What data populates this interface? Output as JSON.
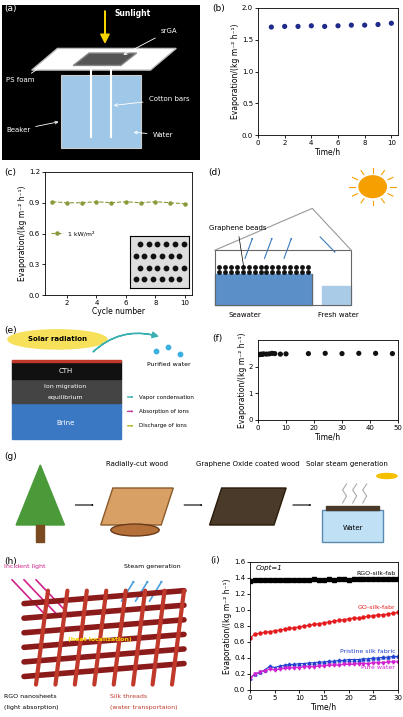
{
  "chart_data": [
    {
      "panel": "(b)",
      "type": "scatter",
      "marker": "o",
      "color": "#1f2a8a",
      "x": [
        1,
        2,
        3,
        4,
        5,
        6,
        7,
        8,
        9,
        10
      ],
      "values": [
        1.7,
        1.71,
        1.71,
        1.72,
        1.71,
        1.72,
        1.73,
        1.73,
        1.74,
        1.76
      ],
      "xlabel": "Time/h",
      "ylabel": "Evaporation/(kg m⁻² h⁻¹)",
      "xlim": [
        0,
        10.5
      ],
      "xticks": [
        0,
        2,
        4,
        6,
        8,
        10
      ],
      "ylim": [
        0,
        2.0
      ],
      "yticks": [
        {
          "value": 0,
          "label": "0.0"
        },
        {
          "value": 0.5,
          "label": "0.5"
        },
        {
          "value": 1.0,
          "label": "1.0"
        },
        {
          "value": 1.5,
          "label": "1.5"
        },
        {
          "value": 2.0,
          "label": "2.0"
        }
      ]
    },
    {
      "panel": "(c)",
      "type": "line",
      "legend": "center left",
      "x": [
        1,
        2,
        3,
        4,
        5,
        6,
        7,
        8,
        9,
        10
      ],
      "series": [
        {
          "name": "1 kW/m²",
          "color": "#8a9a3a",
          "marker": "o",
          "line_style": "dashed",
          "values": [
            0.91,
            0.9,
            0.9,
            0.91,
            0.9,
            0.91,
            0.9,
            0.91,
            0.9,
            0.89
          ]
        }
      ],
      "xlabel": "Cycle number",
      "ylabel": "Evaporation/(kg m⁻² h⁻¹)",
      "xlim": [
        0.5,
        10.5
      ],
      "xticks": [
        2,
        4,
        6,
        8,
        10
      ],
      "ylim": [
        0,
        1.2
      ],
      "yticks": [
        {
          "value": 0,
          "label": "0.0"
        },
        {
          "value": 0.3,
          "label": "0.3"
        },
        {
          "value": 0.6,
          "label": "0.6"
        },
        {
          "value": 0.9,
          "label": "0.9"
        },
        {
          "value": 1.2,
          "label": "1.2"
        }
      ]
    },
    {
      "panel": "(f)",
      "type": "scatter",
      "marker": "o",
      "color": "#111111",
      "x": [
        0.5,
        1,
        1.5,
        2,
        3,
        4,
        5,
        6,
        8,
        10,
        18,
        24,
        30,
        36,
        42,
        48
      ],
      "values": [
        2.45,
        2.47,
        2.46,
        2.48,
        2.47,
        2.48,
        2.5,
        2.49,
        2.47,
        2.48,
        2.49,
        2.5,
        2.49,
        2.5,
        2.5,
        2.49
      ],
      "xlabel": "Time/h",
      "ylabel": "Evaporation/(kg m⁻² h⁻¹)",
      "xlim": [
        0,
        50
      ],
      "xticks": [
        0,
        10,
        20,
        30,
        40,
        50
      ],
      "ylim": [
        0,
        3
      ],
      "yticks": [
        0,
        1,
        2
      ]
    },
    {
      "panel": "(i)",
      "type": "line",
      "annotation": "Copt=1",
      "x": [
        0,
        1,
        2,
        3,
        4,
        5,
        6,
        7,
        8,
        9,
        10,
        11,
        12,
        13,
        14,
        15,
        16,
        17,
        18,
        19,
        20,
        21,
        22,
        23,
        24,
        25,
        26,
        27,
        28,
        29,
        30
      ],
      "series": [
        {
          "name": "RGO-silk-fab",
          "color": "#000000",
          "marker": "s",
          "line_style": "solid",
          "values": [
            1.36,
            1.37,
            1.38,
            1.38,
            1.38,
            1.38,
            1.38,
            1.38,
            1.38,
            1.38,
            1.38,
            1.38,
            1.38,
            1.39,
            1.38,
            1.38,
            1.39,
            1.38,
            1.39,
            1.39,
            1.38,
            1.39,
            1.39,
            1.39,
            1.39,
            1.39,
            1.39,
            1.39,
            1.39,
            1.39,
            1.39
          ]
        },
        {
          "name": "GO-silk-fabr",
          "color": "#e41a1c",
          "marker": "o",
          "line_style": "solid",
          "values": [
            0.65,
            0.7,
            0.71,
            0.72,
            0.73,
            0.74,
            0.75,
            0.76,
            0.77,
            0.78,
            0.79,
            0.8,
            0.81,
            0.82,
            0.83,
            0.84,
            0.85,
            0.86,
            0.87,
            0.88,
            0.89,
            0.9,
            0.9,
            0.91,
            0.92,
            0.93,
            0.94,
            0.94,
            0.95,
            0.96,
            0.97
          ]
        },
        {
          "name": "Pristine silk fabric",
          "color": "#2040d0",
          "marker": "^",
          "line_style": "solid",
          "values": [
            0.15,
            0.2,
            0.22,
            0.25,
            0.3,
            0.28,
            0.3,
            0.31,
            0.32,
            0.32,
            0.33,
            0.33,
            0.34,
            0.34,
            0.35,
            0.35,
            0.36,
            0.36,
            0.37,
            0.37,
            0.38,
            0.38,
            0.38,
            0.39,
            0.39,
            0.4,
            0.4,
            0.41,
            0.41,
            0.42,
            0.42
          ]
        },
        {
          "name": "Pure water",
          "color": "#d020d0",
          "marker": "v",
          "line_style": "solid",
          "values": [
            0.15,
            0.2,
            0.22,
            0.24,
            0.26,
            0.25,
            0.26,
            0.27,
            0.27,
            0.28,
            0.28,
            0.29,
            0.29,
            0.29,
            0.3,
            0.3,
            0.31,
            0.31,
            0.31,
            0.32,
            0.32,
            0.32,
            0.33,
            0.33,
            0.33,
            0.34,
            0.34,
            0.34,
            0.35,
            0.35,
            0.35
          ]
        }
      ],
      "xlabel": "Time/h",
      "ylabel": "Evaporation/(kg m⁻² h⁻¹)",
      "xlim": [
        0,
        30
      ],
      "xticks": [
        0,
        5,
        10,
        15,
        20,
        25,
        30
      ],
      "ylim": [
        0,
        1.6
      ],
      "yticks": [
        {
          "value": 0,
          "label": "0.0"
        },
        {
          "value": 0.2,
          "label": "0.2"
        },
        {
          "value": 0.4,
          "label": "0.4"
        },
        {
          "value": 0.6,
          "label": "0.6"
        },
        {
          "value": 0.8,
          "label": "0.8"
        },
        {
          "value": 1.0,
          "label": "1.0"
        },
        {
          "value": 1.2,
          "label": "1.2"
        },
        {
          "value": 1.4,
          "label": "1.4"
        },
        {
          "value": 1.6,
          "label": "1.6"
        }
      ]
    }
  ],
  "diagrams": {
    "a": {
      "panel": "(a)",
      "labels": {
        "sun": "Sunlight",
        "top": "srGA",
        "foam": "PS foam",
        "cotton": "Cotton bars",
        "beaker": "Beaker",
        "water": "Water"
      }
    },
    "d": {
      "panel": "(d)",
      "labels": {
        "beads": "Graphene beads",
        "sea": "Seawater",
        "fresh": "Fresh water"
      }
    },
    "e": {
      "panel": "(e)",
      "labels": {
        "sun": "Solar radiation",
        "purified": "Purified water",
        "cth": "CTH",
        "ion": "Ion migration",
        "eq": "equilibrium",
        "brine": "Brine",
        "k1": "Vapor condensation",
        "k2": "Absorption of ions",
        "k3": "Discharge of ions"
      }
    },
    "g": {
      "panel": "(g)",
      "labels": {
        "cut": "Radially-cut wood",
        "coated": "Graphene Oxide coated wood",
        "steam": "Solar steam generation",
        "water": "Water"
      }
    },
    "h": {
      "panel": "(h)",
      "labels": {
        "steam": "Steam generation",
        "light": "Incident light",
        "heat": "(heat localization)",
        "rgo": "RGO nanosheets",
        "rgo2": "(light absorption)",
        "silk": "Silk threads",
        "silk2": "(water transportaion)"
      }
    }
  }
}
